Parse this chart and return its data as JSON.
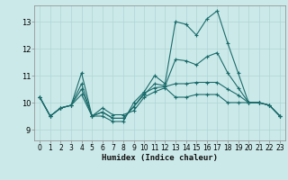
{
  "xlabel": "Humidex (Indice chaleur)",
  "background_color": "#cce9e9",
  "line_color": "#1a6b6b",
  "grid_color": "#aed4d4",
  "x_ticks": [
    0,
    1,
    2,
    3,
    4,
    5,
    6,
    7,
    8,
    9,
    10,
    11,
    12,
    13,
    14,
    15,
    16,
    17,
    18,
    19,
    20,
    21,
    22,
    23
  ],
  "y_ticks": [
    9,
    10,
    11,
    12,
    13
  ],
  "xlim": [
    -0.5,
    23.5
  ],
  "ylim": [
    8.6,
    13.6
  ],
  "line1": [
    10.2,
    9.5,
    9.8,
    9.9,
    11.1,
    9.5,
    9.5,
    9.3,
    9.3,
    10.0,
    10.4,
    11.0,
    10.7,
    13.0,
    12.9,
    12.5,
    13.1,
    13.4,
    12.2,
    11.1,
    10.0,
    10.0,
    9.9,
    9.5
  ],
  "line2": [
    10.2,
    9.5,
    9.8,
    9.9,
    10.3,
    9.5,
    9.8,
    9.55,
    9.55,
    9.7,
    10.2,
    10.4,
    10.55,
    10.2,
    10.2,
    10.3,
    10.3,
    10.3,
    10.0,
    10.0,
    10.0,
    10.0,
    9.9,
    9.5
  ],
  "line3": [
    10.2,
    9.5,
    9.8,
    9.9,
    10.7,
    9.5,
    9.65,
    9.42,
    9.42,
    9.85,
    10.3,
    10.7,
    10.62,
    11.6,
    11.55,
    11.4,
    11.7,
    11.85,
    11.1,
    10.55,
    10.0,
    10.0,
    9.9,
    9.5
  ],
  "line4": [
    10.2,
    9.5,
    9.8,
    9.9,
    10.5,
    9.5,
    9.65,
    9.42,
    9.42,
    9.85,
    10.35,
    10.55,
    10.59,
    10.7,
    10.7,
    10.75,
    10.75,
    10.75,
    10.5,
    10.28,
    10.0,
    10.0,
    9.9,
    9.5
  ]
}
